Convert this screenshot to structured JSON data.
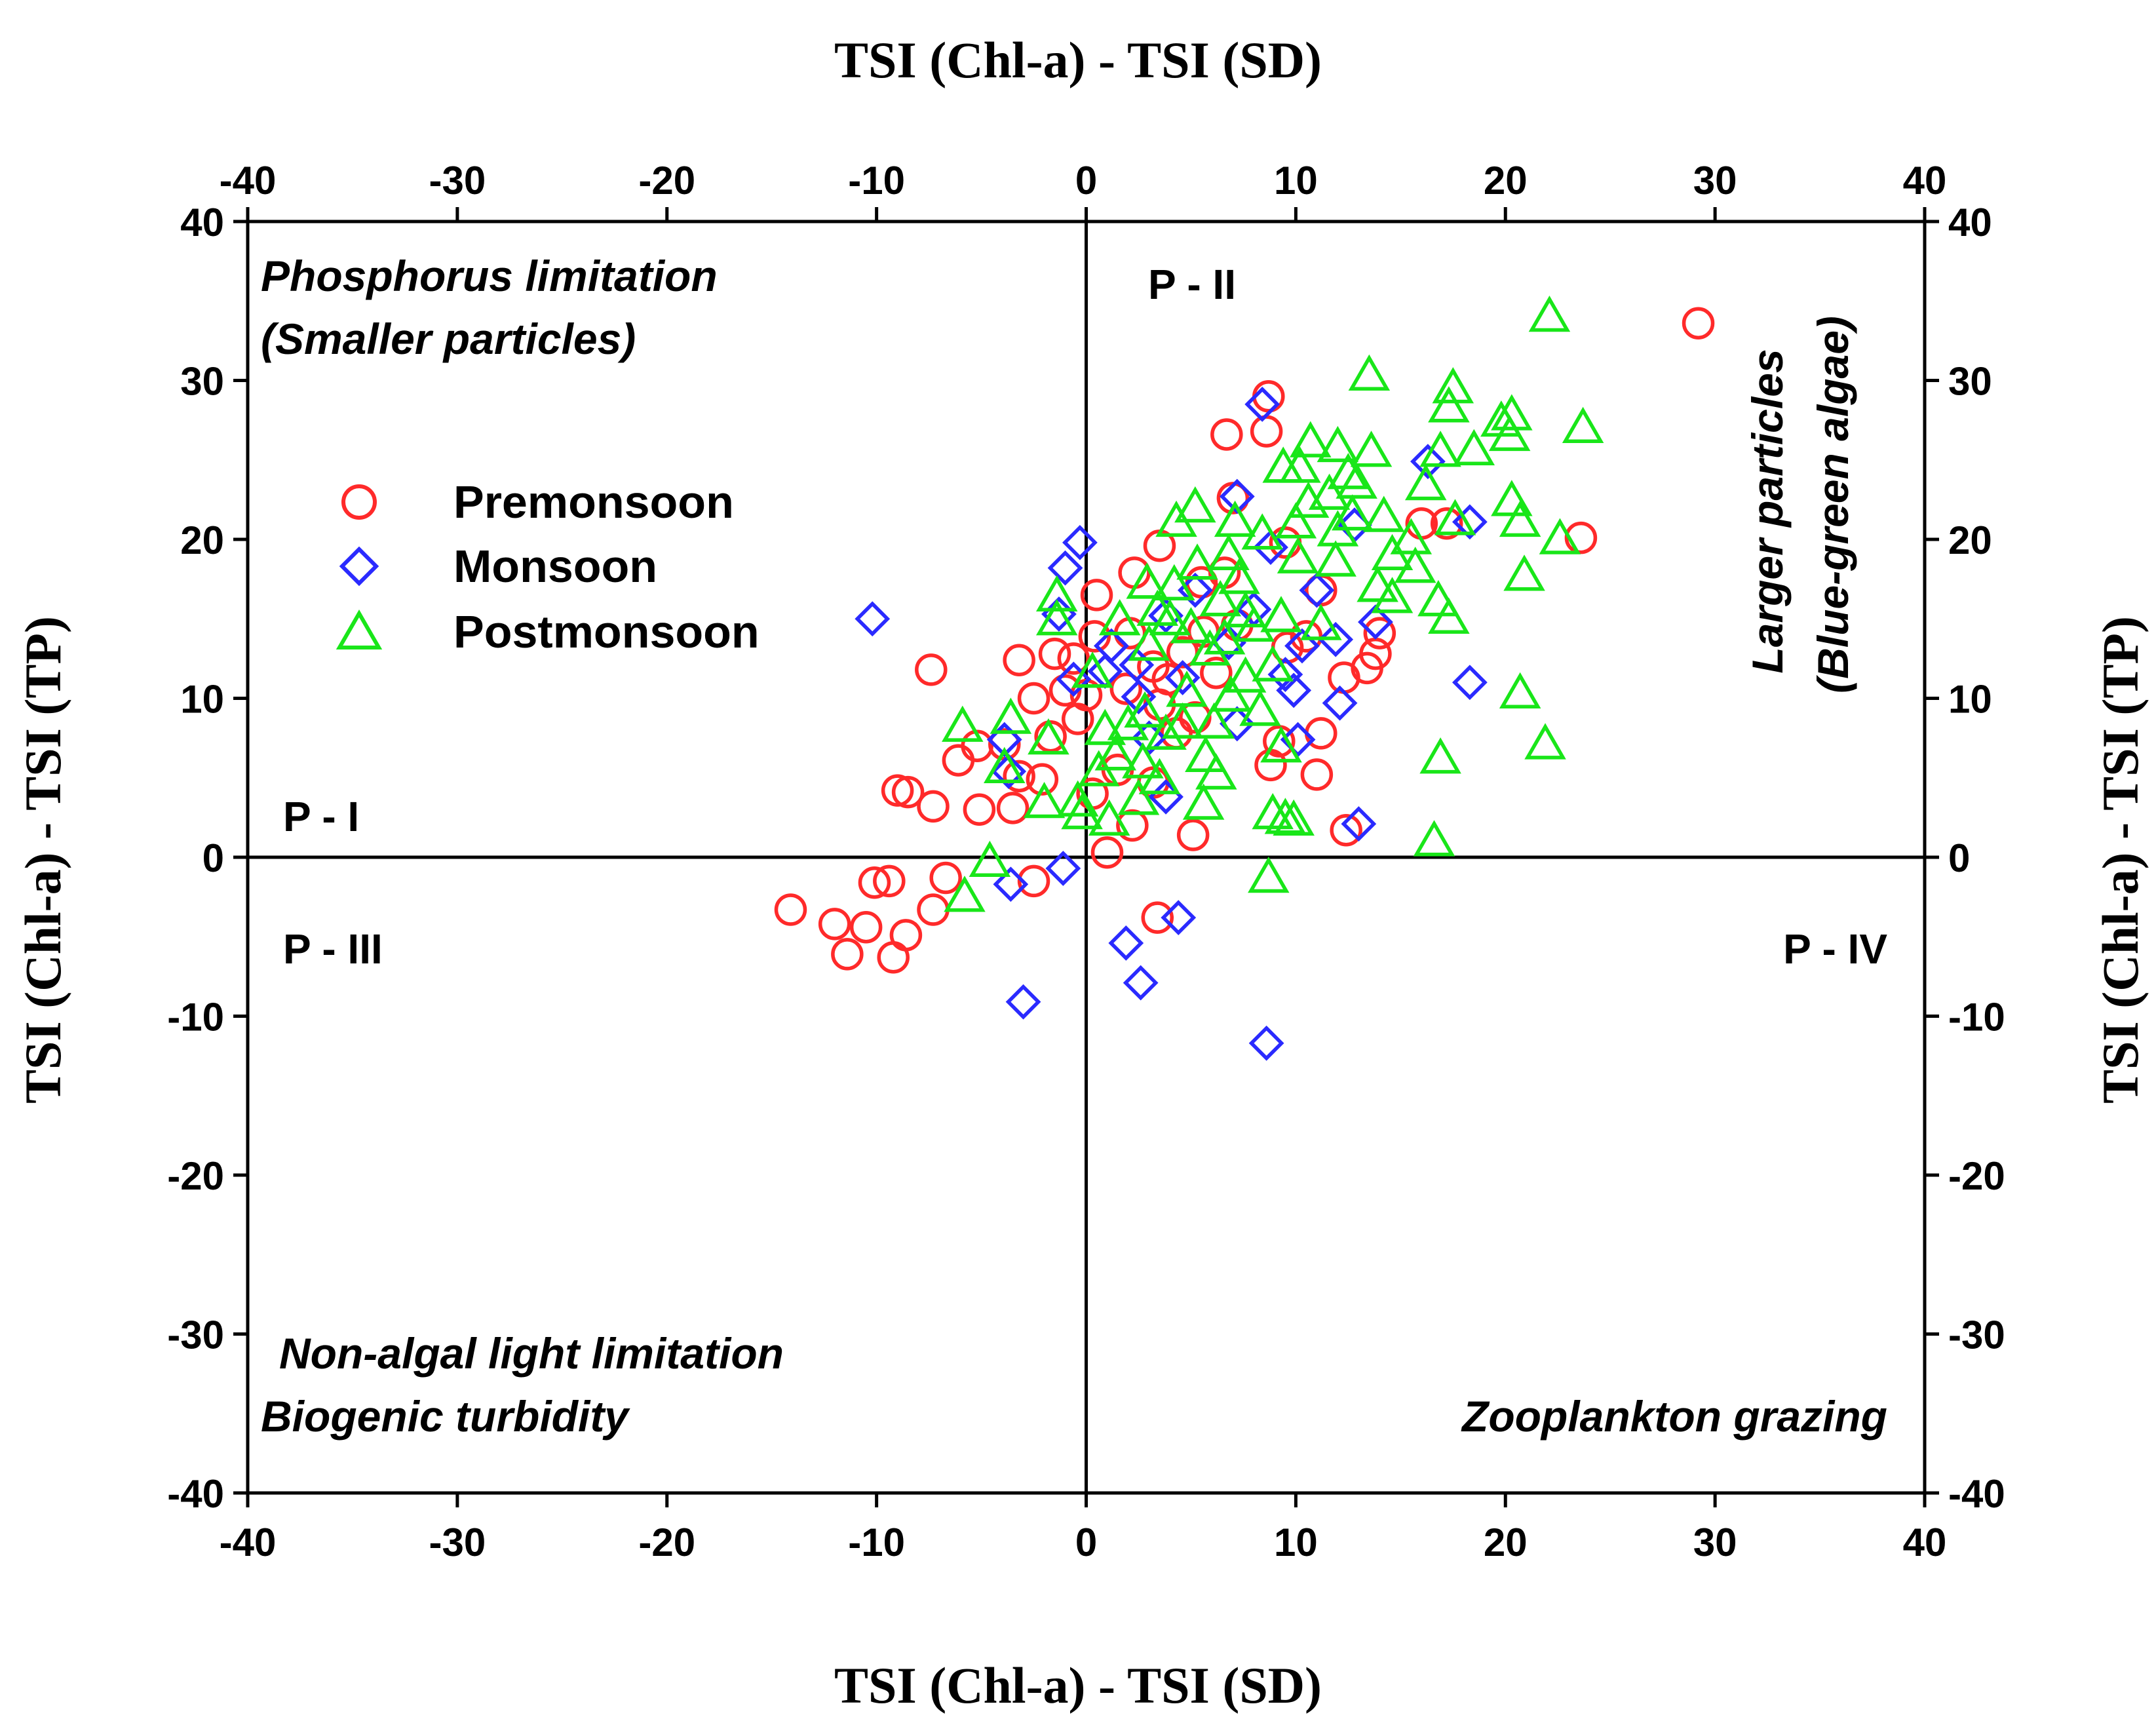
{
  "chart_data": {
    "type": "scatter",
    "x_label_bottom": "TSI (Chl-a) - TSI (SD)",
    "x_label_top": "TSI (Chl-a) - TSI (SD)",
    "y_label_left": "TSI (Chl-a) - TSI (TP)",
    "y_label_right": "TSI (Chl-a) - TSI (TP)",
    "xlim": [
      -40,
      40
    ],
    "ylim": [
      -40,
      40
    ],
    "x_ticks": [
      -40,
      -30,
      -20,
      -10,
      0,
      10,
      20,
      30,
      40
    ],
    "y_ticks": [
      -40,
      -30,
      -20,
      -10,
      0,
      10,
      20,
      30,
      40
    ],
    "legend_position": "left, upper-middle",
    "annotations": {
      "phosphorus_line1": "Phosphorus limitation",
      "phosphorus_line2": "(Smaller particles)",
      "larger_line1": "Larger particles",
      "larger_line2": "(Blue-green algae)",
      "nonalgal_line1": "Non-algal light limitation",
      "nonalgal_line2": "Biogenic turbidity",
      "zooplankton": "Zooplankton grazing",
      "p1": "P - I",
      "p2": "P - II",
      "p3": "P - III",
      "p4": "P - IV"
    },
    "series": [
      {
        "name": "Premonsoon",
        "marker": "circle",
        "color": "#ff2a2a",
        "points": [
          [
            29.2,
            33.6
          ],
          [
            23.6,
            20.1
          ],
          [
            17.2,
            21.0
          ],
          [
            16.0,
            21.0
          ],
          [
            12.3,
            11.3
          ],
          [
            13.4,
            11.9
          ],
          [
            13.8,
            12.8
          ],
          [
            12.4,
            1.7
          ],
          [
            11.2,
            7.8
          ],
          [
            11.0,
            5.2
          ],
          [
            10.5,
            13.9
          ],
          [
            9.6,
            13.2
          ],
          [
            9.2,
            7.3
          ],
          [
            8.8,
            5.8
          ],
          [
            8.7,
            29.0
          ],
          [
            8.6,
            26.8
          ],
          [
            6.7,
            26.6
          ],
          [
            7.0,
            22.6
          ],
          [
            6.6,
            17.9
          ],
          [
            5.5,
            17.3
          ],
          [
            5.6,
            14.2
          ],
          [
            6.2,
            11.6
          ],
          [
            5.2,
            8.8
          ],
          [
            5.1,
            1.4
          ],
          [
            4.3,
            7.8
          ],
          [
            3.9,
            11.2
          ],
          [
            3.5,
            19.6
          ],
          [
            3.5,
            9.6
          ],
          [
            3.2,
            12.0
          ],
          [
            3.2,
            4.7
          ],
          [
            2.3,
            17.9
          ],
          [
            2.2,
            2.0
          ],
          [
            2.1,
            14.1
          ],
          [
            1.0,
            0.3
          ],
          [
            0.5,
            16.5
          ],
          [
            0.4,
            13.9
          ],
          [
            0.3,
            4.0
          ],
          [
            -0.4,
            8.7
          ],
          [
            -1.0,
            10.5
          ],
          [
            -1.5,
            12.8
          ],
          [
            -1.7,
            7.6
          ],
          [
            -2.1,
            4.9
          ],
          [
            -2.5,
            10.0
          ],
          [
            -3.2,
            12.4
          ],
          [
            -3.2,
            5.1
          ],
          [
            -3.5,
            3.1
          ],
          [
            -3.9,
            7.1
          ],
          [
            -5.1,
            3.0
          ],
          [
            -5.2,
            7.0
          ],
          [
            -6.1,
            6.1
          ],
          [
            -7.3,
            3.2
          ],
          [
            -7.4,
            11.8
          ],
          [
            -8.5,
            4.1
          ],
          [
            -9.0,
            4.2
          ],
          [
            -6.7,
            -1.3
          ],
          [
            -7.3,
            -3.3
          ],
          [
            -8.6,
            -4.9
          ],
          [
            -9.4,
            -1.5
          ],
          [
            -10.1,
            -1.6
          ],
          [
            -9.2,
            -6.3
          ],
          [
            -10.5,
            -4.4
          ],
          [
            -11.4,
            -6.1
          ],
          [
            -12.0,
            -4.2
          ],
          [
            -14.1,
            -3.3
          ],
          [
            -2.5,
            -1.5
          ],
          [
            3.4,
            -3.8
          ],
          [
            1.5,
            5.5
          ],
          [
            0.0,
            10.2
          ],
          [
            -0.6,
            12.5
          ],
          [
            1.9,
            10.6
          ],
          [
            4.6,
            12.9
          ],
          [
            7.2,
            14.6
          ],
          [
            9.5,
            19.8
          ],
          [
            11.2,
            16.8
          ],
          [
            14.0,
            14.1
          ]
        ]
      },
      {
        "name": "Monsoon",
        "marker": "diamond",
        "color": "#2a2aff",
        "points": [
          [
            -10.2,
            15.0
          ],
          [
            -1.0,
            18.2
          ],
          [
            -0.3,
            19.8
          ],
          [
            -1.3,
            15.3
          ],
          [
            -0.6,
            11.2
          ],
          [
            -3.9,
            7.4
          ],
          [
            -3.7,
            5.4
          ],
          [
            -1.1,
            -0.7
          ],
          [
            -3.6,
            -1.7
          ],
          [
            -3.0,
            -9.1
          ],
          [
            1.9,
            -5.4
          ],
          [
            2.6,
            -7.9
          ],
          [
            4.4,
            -3.8
          ],
          [
            8.6,
            -11.7
          ],
          [
            13.0,
            2.1
          ],
          [
            18.3,
            11.0
          ],
          [
            18.3,
            21.1
          ],
          [
            16.3,
            24.9
          ],
          [
            13.8,
            14.8
          ],
          [
            12.8,
            20.9
          ],
          [
            11.0,
            16.8
          ],
          [
            9.9,
            10.5
          ],
          [
            10.3,
            13.3
          ],
          [
            9.5,
            11.5
          ],
          [
            8.4,
            28.5
          ],
          [
            7.2,
            22.7
          ],
          [
            8.8,
            19.5
          ],
          [
            8.0,
            15.6
          ],
          [
            6.8,
            13.5
          ],
          [
            5.2,
            16.8
          ],
          [
            4.6,
            11.3
          ],
          [
            3.8,
            15.2
          ],
          [
            2.4,
            12.1
          ],
          [
            2.5,
            10.1
          ],
          [
            1.2,
            13.3
          ],
          [
            0.9,
            11.7
          ],
          [
            3.0,
            7.5
          ],
          [
            3.8,
            3.8
          ],
          [
            7.2,
            8.4
          ],
          [
            10.1,
            7.4
          ],
          [
            12.1,
            9.7
          ],
          [
            11.9,
            13.7
          ]
        ]
      },
      {
        "name": "Postmonsoon",
        "marker": "triangle",
        "color": "#19e619",
        "points": [
          [
            22.1,
            34.0
          ],
          [
            23.7,
            27.0
          ],
          [
            22.6,
            20.0
          ],
          [
            20.9,
            17.7
          ],
          [
            20.7,
            21.1
          ],
          [
            20.3,
            22.4
          ],
          [
            20.2,
            26.5
          ],
          [
            20.3,
            27.8
          ],
          [
            19.8,
            27.4
          ],
          [
            18.5,
            25.6
          ],
          [
            17.5,
            29.5
          ],
          [
            17.3,
            28.3
          ],
          [
            17.6,
            21.2
          ],
          [
            17.3,
            15.0
          ],
          [
            16.8,
            16.1
          ],
          [
            16.6,
            1.0
          ],
          [
            16.9,
            6.2
          ],
          [
            21.9,
            7.1
          ],
          [
            20.7,
            10.3
          ],
          [
            16.9,
            25.5
          ],
          [
            16.2,
            23.4
          ],
          [
            15.7,
            18.2
          ],
          [
            15.5,
            20.0
          ],
          [
            14.6,
            16.3
          ],
          [
            14.2,
            21.4
          ],
          [
            13.9,
            17.0
          ],
          [
            13.5,
            30.3
          ],
          [
            13.6,
            25.5
          ],
          [
            12.9,
            23.5
          ],
          [
            12.7,
            21.5
          ],
          [
            12.5,
            24.1
          ],
          [
            12.0,
            25.8
          ],
          [
            11.9,
            18.6
          ],
          [
            11.6,
            22.8
          ],
          [
            11.2,
            14.6
          ],
          [
            10.7,
            26.1
          ],
          [
            10.6,
            22.3
          ],
          [
            10.2,
            24.5
          ],
          [
            10.0,
            21.0
          ],
          [
            9.4,
            24.5
          ],
          [
            9.3,
            15.1
          ],
          [
            9.9,
            2.3
          ],
          [
            9.5,
            2.4
          ],
          [
            9.3,
            6.9
          ],
          [
            8.9,
            2.7
          ],
          [
            8.7,
            -1.3
          ],
          [
            8.9,
            12.0
          ],
          [
            8.3,
            9.2
          ],
          [
            8.0,
            14.5
          ],
          [
            7.6,
            11.3
          ],
          [
            7.3,
            17.5
          ],
          [
            7.1,
            21.1
          ],
          [
            6.9,
            10.1
          ],
          [
            6.6,
            13.7
          ],
          [
            6.4,
            16.1
          ],
          [
            6.1,
            8.4
          ],
          [
            5.9,
            13.0
          ],
          [
            5.7,
            6.3
          ],
          [
            5.6,
            3.3
          ],
          [
            5.2,
            22.0
          ],
          [
            5.3,
            18.4
          ],
          [
            5.0,
            14.4
          ],
          [
            4.8,
            10.4
          ],
          [
            4.6,
            8.4
          ],
          [
            4.3,
            21.1
          ],
          [
            4.2,
            17.1
          ],
          [
            4.0,
            14.9
          ],
          [
            3.8,
            7.7
          ],
          [
            3.5,
            4.9
          ],
          [
            3.4,
            15.5
          ],
          [
            2.9,
            17.2
          ],
          [
            2.8,
            9.1
          ],
          [
            2.7,
            5.9
          ],
          [
            2.5,
            3.6
          ],
          [
            2.0,
            8.3
          ],
          [
            1.6,
            14.9
          ],
          [
            1.4,
            6.4
          ],
          [
            1.1,
            2.3
          ],
          [
            0.9,
            8.0
          ],
          [
            0.6,
            5.4
          ],
          [
            0.3,
            11.6
          ],
          [
            -0.2,
            2.7
          ],
          [
            -0.4,
            3.5
          ],
          [
            -1.4,
            14.9
          ],
          [
            -1.4,
            16.4
          ],
          [
            -1.8,
            7.4
          ],
          [
            -2.0,
            3.4
          ],
          [
            -3.6,
            8.7
          ],
          [
            -3.9,
            5.6
          ],
          [
            -4.6,
            -0.3
          ],
          [
            -5.8,
            -2.5
          ],
          [
            -5.9,
            8.2
          ],
          [
            10.1,
            18.8
          ],
          [
            12.0,
            20.5
          ],
          [
            14.6,
            19.0
          ],
          [
            8.4,
            20.3
          ],
          [
            6.8,
            19.0
          ],
          [
            6.2,
            5.2
          ],
          [
            3.0,
            13.3
          ],
          [
            7.6,
            15.4
          ]
        ]
      }
    ]
  }
}
